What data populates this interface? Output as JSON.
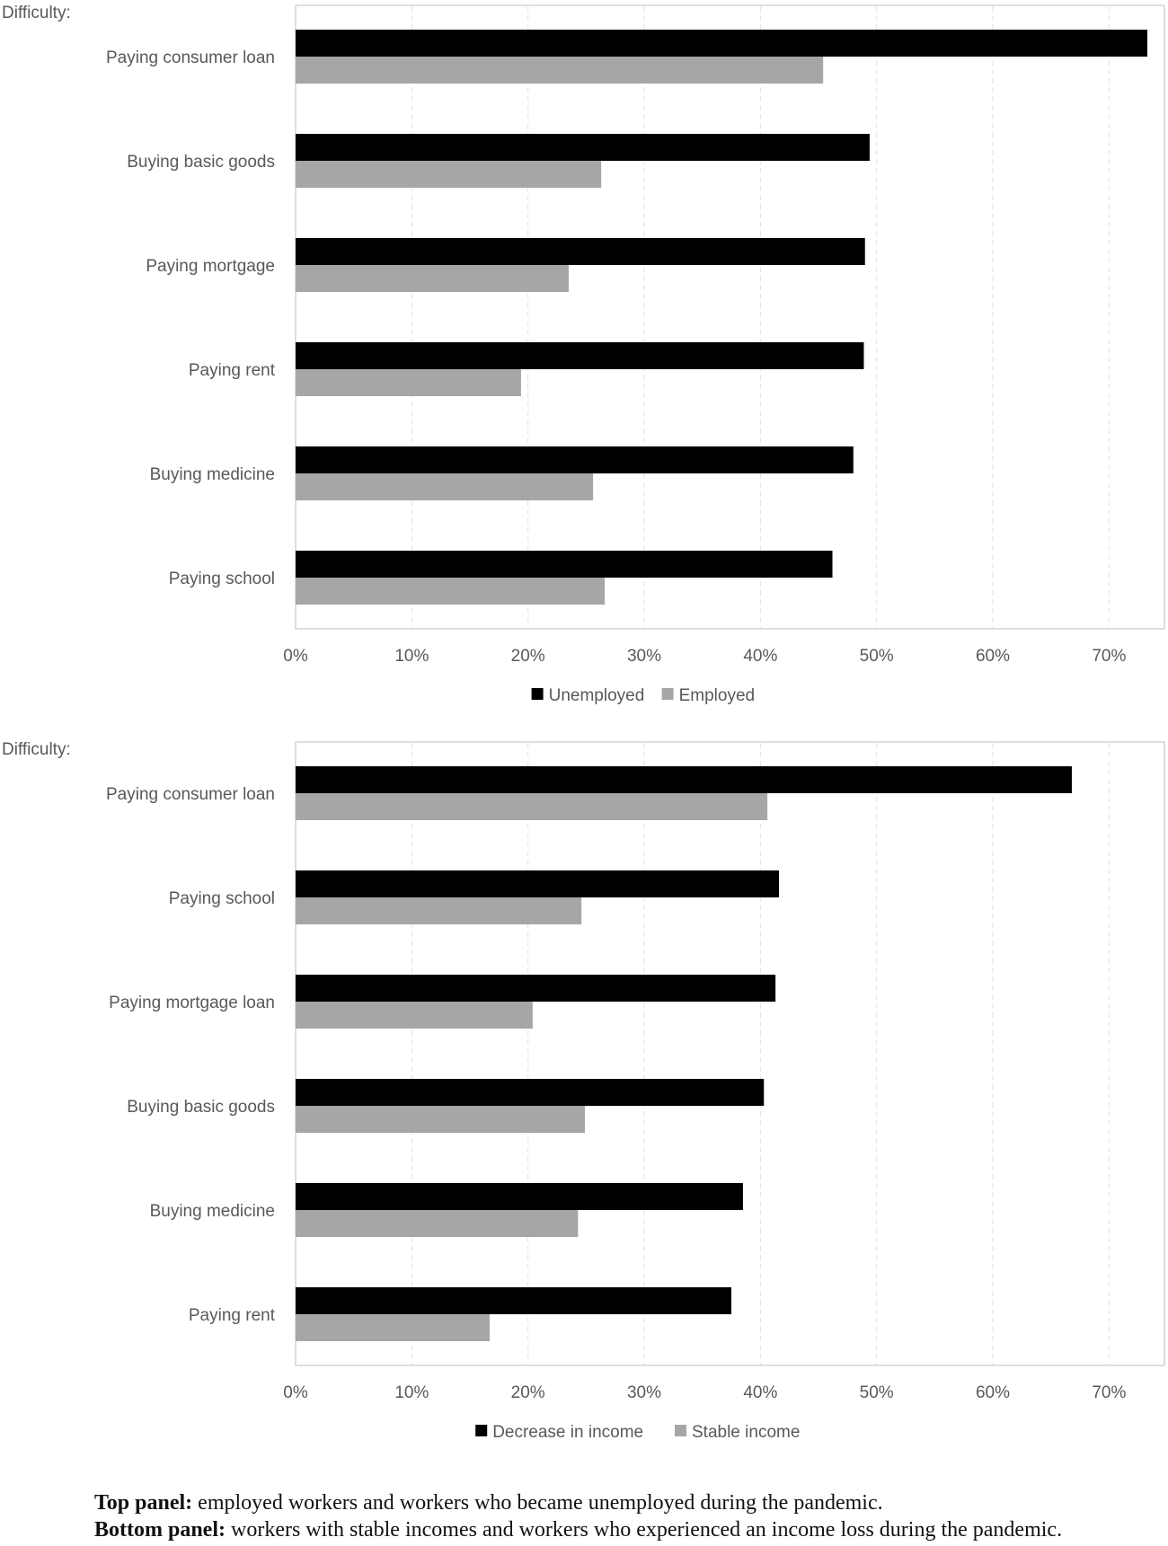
{
  "chart_data": [
    {
      "type": "bar",
      "orientation": "horizontal",
      "category_axis_title": "Difficulty:",
      "categories": [
        "Paying consumer loan",
        "Buying basic goods",
        "Paying mortgage",
        "Paying rent",
        "Buying medicine",
        "Paying school"
      ],
      "series": [
        {
          "name": "Unemployed",
          "color": "#000000",
          "values": [
            73.3,
            49.4,
            49.0,
            48.9,
            48.0,
            46.2
          ]
        },
        {
          "name": "Employed",
          "color": "#a6a6a6",
          "values": [
            45.4,
            26.3,
            23.5,
            19.4,
            25.6,
            26.6
          ]
        }
      ],
      "xlim": [
        0,
        75
      ],
      "x_ticks": [
        "0%",
        "10%",
        "20%",
        "30%",
        "40%",
        "50%",
        "60%",
        "70%"
      ],
      "grid": "vertical dashed",
      "legend": "bottom"
    },
    {
      "type": "bar",
      "orientation": "horizontal",
      "category_axis_title": "Difficulty:",
      "categories": [
        "Paying consumer loan",
        "Paying school",
        "Paying mortgage loan",
        "Buying basic goods",
        "Buying medicine",
        "Paying rent"
      ],
      "series": [
        {
          "name": "Decrease in income",
          "color": "#000000",
          "values": [
            66.8,
            41.6,
            41.3,
            40.3,
            38.5,
            37.5
          ]
        },
        {
          "name": "Stable income",
          "color": "#a6a6a6",
          "values": [
            40.6,
            24.6,
            20.4,
            24.9,
            24.3,
            16.7
          ]
        }
      ],
      "xlim": [
        0,
        75
      ],
      "x_ticks": [
        "0%",
        "10%",
        "20%",
        "30%",
        "40%",
        "50%",
        "60%",
        "70%"
      ],
      "grid": "vertical dashed",
      "legend": "bottom"
    }
  ],
  "caption": {
    "line1": {
      "bold": "Top panel:",
      "text": " employed workers and workers who became unemployed during the pandemic."
    },
    "line2": {
      "bold": "Bottom panel:",
      "text": " workers with stable incomes and workers who experienced an income loss during the pandemic."
    }
  }
}
